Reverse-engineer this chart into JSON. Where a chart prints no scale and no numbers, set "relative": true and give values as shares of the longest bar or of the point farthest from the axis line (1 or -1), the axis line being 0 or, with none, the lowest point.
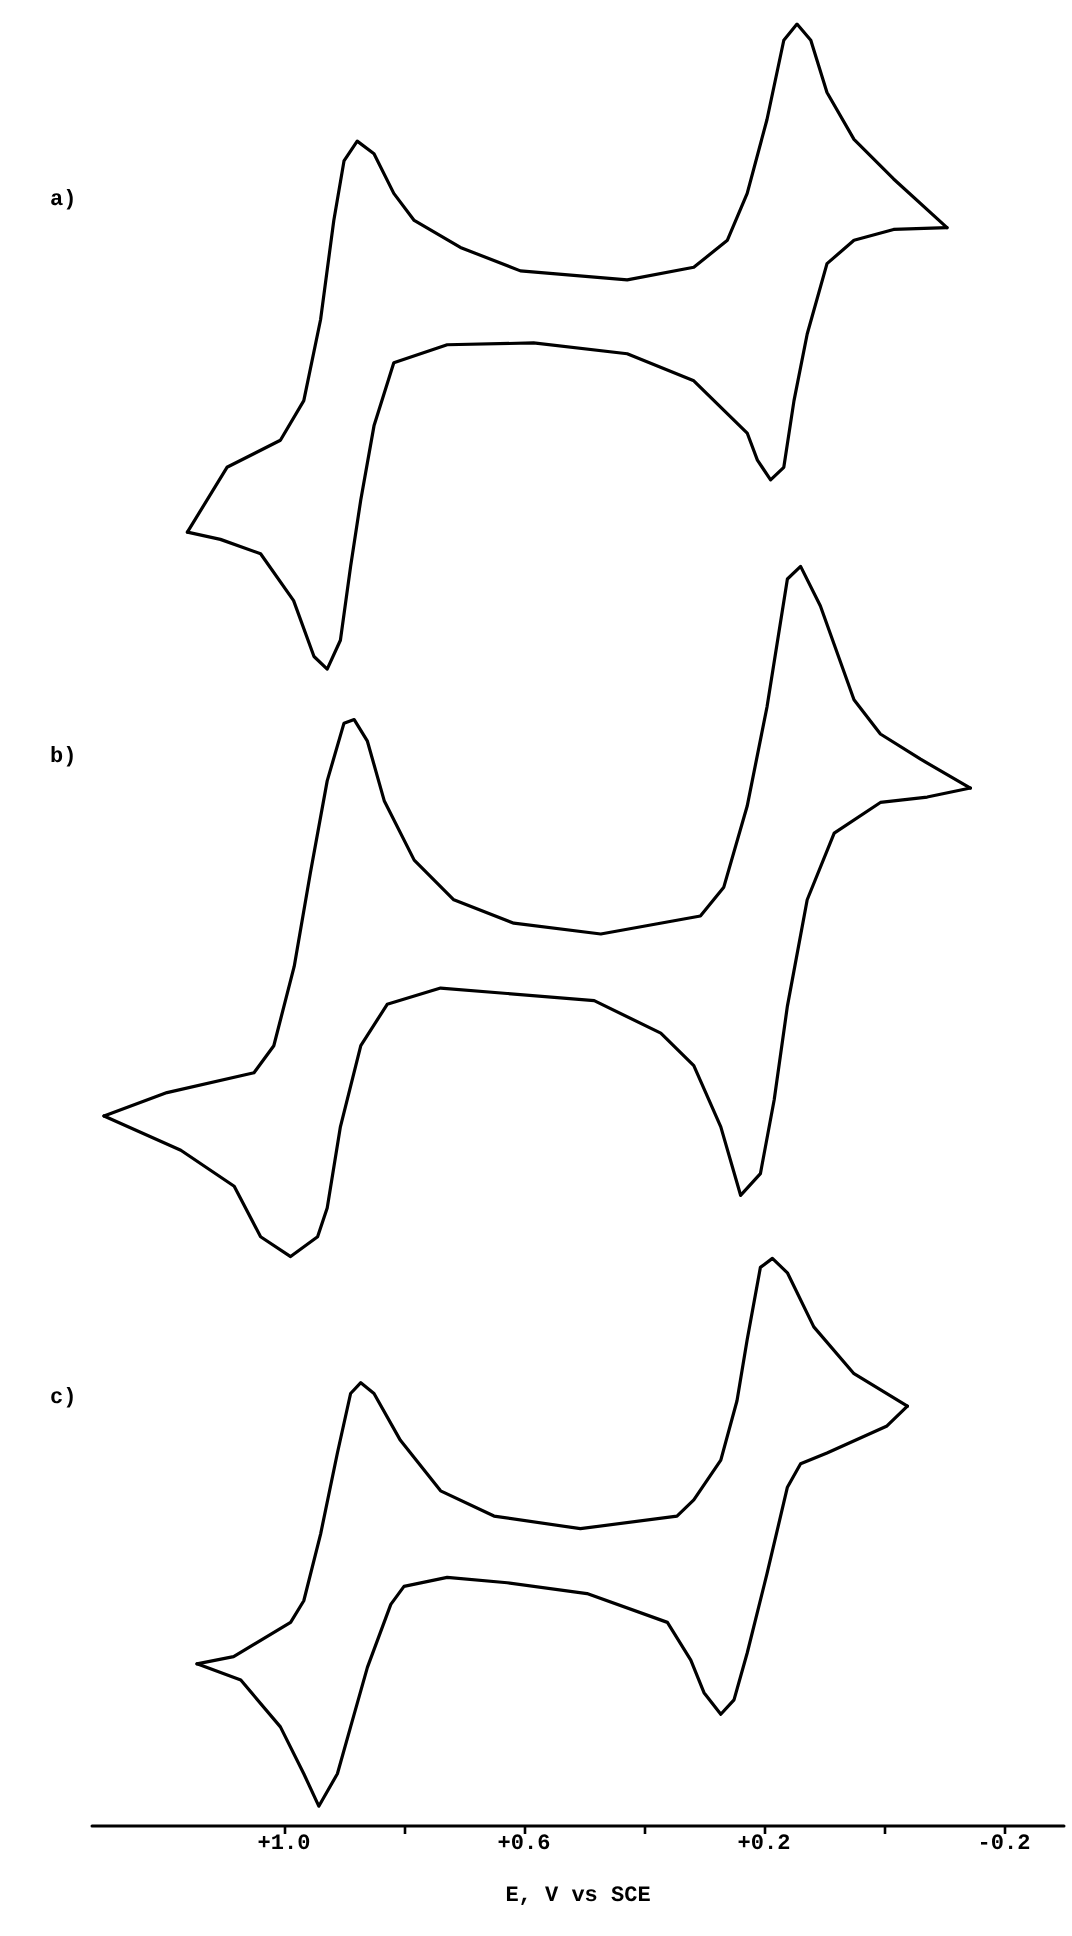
{
  "chart_data": {
    "type": "line",
    "relative": true,
    "annotations": [
      "a)",
      "b)",
      "c)"
    ],
    "xlim": [
      1.32,
      -0.3
    ],
    "xlabel": "E, V vs SCE",
    "tick_labels": "x",
    "xticks": [
      {
        "value": 1.0,
        "label": "+1.0"
      },
      {
        "value": 0.8,
        "label": null
      },
      {
        "value": 0.6,
        "label": "+0.6"
      },
      {
        "value": 0.4,
        "label": null
      },
      {
        "value": 0.2,
        "label": "+0.2"
      },
      {
        "value": 0.0,
        "label": null
      },
      {
        "value": -0.2,
        "label": "-0.2"
      }
    ],
    "series": [
      {
        "color": "#000000",
        "x": [
          1.161,
          1.095,
          1.006,
          0.967,
          0.939,
          0.917,
          0.9,
          0.878,
          0.85,
          0.817,
          0.783,
          0.706,
          0.606,
          0.428,
          0.317,
          0.261,
          0.228,
          0.195,
          0.167,
          0.145,
          0.122,
          0.095,
          0.05,
          -0.016,
          -0.105
        ],
        "values": [
          0.718,
          0.754,
          0.769,
          0.791,
          0.836,
          0.891,
          0.924,
          0.935,
          0.928,
          0.906,
          0.891,
          0.876,
          0.863,
          0.858,
          0.865,
          0.88,
          0.906,
          0.947,
          0.991,
          1.0,
          0.991,
          0.962,
          0.936,
          0.914,
          0.887
        ]
      },
      {
        "color": "#000000",
        "x": [
          -0.105,
          -0.016,
          0.05,
          0.095,
          0.128,
          0.15,
          0.167,
          0.189,
          0.211,
          0.228,
          0.317,
          0.428,
          0.584,
          0.728,
          0.817,
          0.85,
          0.872,
          0.889,
          0.906,
          0.928,
          0.95,
          0.984,
          1.039,
          1.106,
          1.161
        ],
        "values": [
          0.887,
          0.886,
          0.88,
          0.867,
          0.828,
          0.791,
          0.754,
          0.747,
          0.758,
          0.773,
          0.802,
          0.817,
          0.823,
          0.822,
          0.812,
          0.777,
          0.736,
          0.699,
          0.658,
          0.642,
          0.649,
          0.68,
          0.706,
          0.714,
          0.718
        ]
      },
      {
        "color": "#000000",
        "x": [
          1.3,
          1.195,
          1.05,
          1.017,
          0.983,
          0.956,
          0.928,
          0.9,
          0.883,
          0.861,
          0.833,
          0.783,
          0.717,
          0.617,
          0.472,
          0.306,
          0.267,
          0.228,
          0.195,
          0.161,
          0.139,
          0.106,
          0.05,
          0.006,
          -0.061,
          -0.144
        ],
        "values": [
          0.394,
          0.407,
          0.418,
          0.433,
          0.477,
          0.529,
          0.58,
          0.612,
          0.614,
          0.602,
          0.569,
          0.536,
          0.514,
          0.501,
          0.495,
          0.505,
          0.521,
          0.566,
          0.621,
          0.692,
          0.699,
          0.677,
          0.625,
          0.606,
          0.592,
          0.576
        ]
      },
      {
        "color": "#000000",
        "x": [
          -0.144,
          -0.072,
          0.006,
          0.083,
          0.128,
          0.161,
          0.183,
          0.206,
          0.239,
          0.272,
          0.317,
          0.372,
          0.483,
          0.628,
          0.739,
          0.828,
          0.872,
          0.906,
          0.928,
          0.944,
          0.989,
          1.039,
          1.083,
          1.172,
          1.3
        ],
        "values": [
          0.576,
          0.571,
          0.568,
          0.551,
          0.514,
          0.455,
          0.403,
          0.362,
          0.35,
          0.388,
          0.422,
          0.44,
          0.458,
          0.462,
          0.465,
          0.456,
          0.433,
          0.388,
          0.343,
          0.327,
          0.316,
          0.327,
          0.355,
          0.375,
          0.394
        ]
      },
      {
        "color": "#000000",
        "x": [
          1.145,
          1.084,
          0.989,
          0.967,
          0.939,
          0.911,
          0.889,
          0.872,
          0.85,
          0.806,
          0.739,
          0.65,
          0.506,
          0.345,
          0.317,
          0.272,
          0.245,
          0.228,
          0.206,
          0.186,
          0.161,
          0.117,
          0.05,
          -0.039
        ],
        "values": [
          0.09,
          0.094,
          0.113,
          0.125,
          0.162,
          0.207,
          0.24,
          0.246,
          0.24,
          0.214,
          0.186,
          0.172,
          0.165,
          0.172,
          0.181,
          0.203,
          0.236,
          0.27,
          0.31,
          0.315,
          0.307,
          0.277,
          0.251,
          0.233
        ]
      },
      {
        "color": "#000000",
        "x": [
          -0.039,
          -0.005,
          0.095,
          0.139,
          0.161,
          0.195,
          0.228,
          0.25,
          0.272,
          0.3,
          0.322,
          0.361,
          0.495,
          0.628,
          0.728,
          0.8,
          0.822,
          0.861,
          0.889,
          0.911,
          0.942,
          0.967,
          1.006,
          1.072,
          1.145
        ],
        "values": [
          0.233,
          0.222,
          0.207,
          0.201,
          0.188,
          0.14,
          0.096,
          0.07,
          0.062,
          0.074,
          0.092,
          0.113,
          0.129,
          0.135,
          0.138,
          0.133,
          0.123,
          0.088,
          0.055,
          0.029,
          0.011,
          0.029,
          0.055,
          0.081,
          0.09
        ]
      }
    ]
  }
}
